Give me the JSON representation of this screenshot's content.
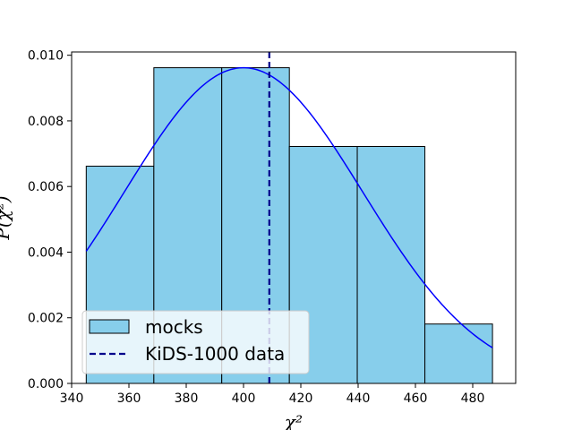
{
  "chart_data": {
    "type": "bar",
    "title": "",
    "xlabel": "χ²",
    "ylabel": "P(χ²)",
    "xlim": [
      340,
      495
    ],
    "ylim": [
      0,
      0.0101
    ],
    "grid": false,
    "legend_position": "lower-left",
    "x_ticks": [
      340,
      360,
      380,
      400,
      420,
      440,
      460,
      480
    ],
    "x_tick_labels": [
      "340",
      "360",
      "380",
      "400",
      "420",
      "440",
      "460",
      "480"
    ],
    "y_ticks": [
      0.0,
      0.002,
      0.004,
      0.006,
      0.008,
      0.01
    ],
    "y_tick_labels": [
      "0.000",
      "0.002",
      "0.004",
      "0.006",
      "0.008",
      "0.010"
    ],
    "bins": [
      {
        "x0": 345.1,
        "x1": 368.7,
        "value": 0.00662
      },
      {
        "x0": 368.7,
        "x1": 392.4,
        "value": 0.00962
      },
      {
        "x0": 392.4,
        "x1": 416.0,
        "value": 0.00962
      },
      {
        "x0": 416.0,
        "x1": 439.7,
        "value": 0.00722
      },
      {
        "x0": 439.7,
        "x1": 463.3,
        "value": 0.00722
      },
      {
        "x0": 463.3,
        "x1": 486.9,
        "value": 0.00181
      }
    ],
    "curve": {
      "x_min": 345.1,
      "x_max": 486.9,
      "mean": 400,
      "sigma": 41.6
    },
    "data_line_x": 409,
    "series": [
      {
        "name": "mocks",
        "kind": "histogram",
        "color": "#87ceeb"
      },
      {
        "name": "KiDS-1000 data",
        "kind": "vertical-dashed-line",
        "color": "#00008b"
      }
    ],
    "curve_color": "#0000ff",
    "bar_edge_color": "#000000"
  }
}
